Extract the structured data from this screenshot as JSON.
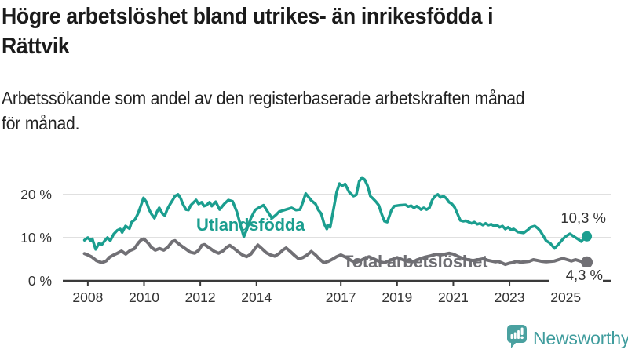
{
  "header": {
    "title_lines": [
      "Högre arbetslöshet bland utrikes- än inrikesfödda i",
      "Rättvik"
    ],
    "subtitle_lines": [
      "Arbetssökande som andel av den registerbaserade arbetskraften månad",
      "för månad."
    ]
  },
  "footer": {
    "brand": "Newsworthy",
    "brand_color": "#3f9c9d",
    "logo_icon": "bar-chart-speech-bubble-icon"
  },
  "chart_data": {
    "type": "line",
    "title": "Högre arbetslöshet bland utrikes- än inrikesfödda i Rättvik",
    "subtitle": "Arbetssökande som andel av den registerbaserade arbetskraften månad för månad.",
    "xlabel": "",
    "ylabel": "",
    "grid": "horizontal",
    "legend_position": "inline-labels",
    "xlim": [
      2007.11,
      2026.6
    ],
    "ylim": [
      0,
      25.6
    ],
    "x_ticks": [
      2008,
      2010,
      2012,
      2014,
      2017,
      2019,
      2021,
      2023,
      2025
    ],
    "y_ticks": [
      {
        "value": 0,
        "label": "0 %"
      },
      {
        "value": 10,
        "label": "10 %"
      },
      {
        "value": 20,
        "label": "20 %"
      }
    ],
    "colors": {
      "utlandsfodda": "#1b9e8f",
      "total": "#717075",
      "grid": "#dcdcdc",
      "axis": "#3a3a3a",
      "tick_text": "#333333"
    },
    "series": [
      {
        "id": "utlandsfodda",
        "name": "Utlandsfödda",
        "color": "#1b9e8f",
        "stroke_width": 3.5,
        "dot_radius": 6.5,
        "end_label": "10,3 %",
        "end_value": 10.3,
        "points": [
          [
            2007.88,
            9.4
          ],
          [
            2008.0,
            10.0
          ],
          [
            2008.1,
            9.3
          ],
          [
            2008.16,
            9.7
          ],
          [
            2008.28,
            7.3
          ],
          [
            2008.4,
            8.7
          ],
          [
            2008.5,
            8.4
          ],
          [
            2008.6,
            9.3
          ],
          [
            2008.7,
            10.0
          ],
          [
            2008.8,
            9.3
          ],
          [
            2008.92,
            10.8
          ],
          [
            2009.05,
            11.7
          ],
          [
            2009.15,
            12.0
          ],
          [
            2009.22,
            11.2
          ],
          [
            2009.34,
            12.7
          ],
          [
            2009.48,
            12.1
          ],
          [
            2009.56,
            13.6
          ],
          [
            2009.68,
            14.2
          ],
          [
            2009.78,
            15.5
          ],
          [
            2009.86,
            16.9
          ],
          [
            2009.98,
            19.2
          ],
          [
            2010.09,
            18.2
          ],
          [
            2010.18,
            16.5
          ],
          [
            2010.26,
            15.5
          ],
          [
            2010.37,
            14.5
          ],
          [
            2010.46,
            16.0
          ],
          [
            2010.54,
            16.9
          ],
          [
            2010.65,
            15.6
          ],
          [
            2010.74,
            15.1
          ],
          [
            2010.82,
            16.5
          ],
          [
            2010.93,
            17.8
          ],
          [
            2011.02,
            18.7
          ],
          [
            2011.1,
            19.6
          ],
          [
            2011.21,
            20.0
          ],
          [
            2011.3,
            19.1
          ],
          [
            2011.38,
            17.8
          ],
          [
            2011.49,
            16.5
          ],
          [
            2011.58,
            16.4
          ],
          [
            2011.66,
            17.5
          ],
          [
            2011.77,
            18.2
          ],
          [
            2011.85,
            18.7
          ],
          [
            2011.94,
            17.8
          ],
          [
            2012.05,
            18.2
          ],
          [
            2012.13,
            17.3
          ],
          [
            2012.22,
            17.5
          ],
          [
            2012.33,
            18.2
          ],
          [
            2012.41,
            17.3
          ],
          [
            2012.55,
            18.3
          ],
          [
            2012.69,
            16.5
          ],
          [
            2012.85,
            17.8
          ],
          [
            2013.0,
            18.7
          ],
          [
            2013.15,
            18.4
          ],
          [
            2013.3,
            16.0
          ],
          [
            2013.45,
            12.4
          ],
          [
            2013.55,
            10.2
          ],
          [
            2013.65,
            11.8
          ],
          [
            2013.8,
            14.5
          ],
          [
            2013.95,
            16.4
          ],
          [
            2014.1,
            17.0
          ],
          [
            2014.25,
            17.5
          ],
          [
            2014.4,
            16.0
          ],
          [
            2014.55,
            14.5
          ],
          [
            2014.7,
            15.3
          ],
          [
            2014.8,
            16.0
          ],
          [
            2014.95,
            16.3
          ],
          [
            2015.1,
            16.6
          ],
          [
            2015.25,
            16.9
          ],
          [
            2015.4,
            16.4
          ],
          [
            2015.55,
            16.5
          ],
          [
            2015.65,
            18.2
          ],
          [
            2015.75,
            20.2
          ],
          [
            2015.85,
            19.4
          ],
          [
            2015.95,
            18.6
          ],
          [
            2016.1,
            17.8
          ],
          [
            2016.2,
            16.4
          ],
          [
            2016.3,
            15.6
          ],
          [
            2016.4,
            13.3
          ],
          [
            2016.5,
            12.0
          ],
          [
            2016.56,
            12.9
          ],
          [
            2016.62,
            12.4
          ],
          [
            2016.75,
            16.9
          ],
          [
            2016.85,
            20.5
          ],
          [
            2016.95,
            22.5
          ],
          [
            2017.05,
            22.0
          ],
          [
            2017.15,
            22.4
          ],
          [
            2017.3,
            20.5
          ],
          [
            2017.45,
            19.6
          ],
          [
            2017.55,
            19.9
          ],
          [
            2017.65,
            23.0
          ],
          [
            2017.75,
            23.9
          ],
          [
            2017.85,
            23.4
          ],
          [
            2017.95,
            22.0
          ],
          [
            2018.05,
            19.6
          ],
          [
            2018.15,
            19.0
          ],
          [
            2018.25,
            18.3
          ],
          [
            2018.35,
            17.5
          ],
          [
            2018.45,
            15.5
          ],
          [
            2018.55,
            13.8
          ],
          [
            2018.65,
            13.6
          ],
          [
            2018.8,
            16.4
          ],
          [
            2018.9,
            17.3
          ],
          [
            2019.1,
            17.5
          ],
          [
            2019.3,
            17.6
          ],
          [
            2019.4,
            17.2
          ],
          [
            2019.5,
            17.4
          ],
          [
            2019.6,
            16.9
          ],
          [
            2019.7,
            17.3
          ],
          [
            2019.85,
            16.5
          ],
          [
            2019.95,
            16.9
          ],
          [
            2020.05,
            16.5
          ],
          [
            2020.15,
            16.9
          ],
          [
            2020.25,
            18.7
          ],
          [
            2020.35,
            19.6
          ],
          [
            2020.45,
            20.0
          ],
          [
            2020.55,
            19.3
          ],
          [
            2020.65,
            19.6
          ],
          [
            2020.75,
            19.1
          ],
          [
            2020.85,
            18.2
          ],
          [
            2020.95,
            17.8
          ],
          [
            2021.05,
            17.0
          ],
          [
            2021.15,
            15.5
          ],
          [
            2021.25,
            14.0
          ],
          [
            2021.35,
            13.8
          ],
          [
            2021.45,
            13.9
          ],
          [
            2021.55,
            13.6
          ],
          [
            2021.65,
            13.3
          ],
          [
            2021.75,
            13.6
          ],
          [
            2021.85,
            13.1
          ],
          [
            2021.95,
            13.3
          ],
          [
            2022.05,
            12.9
          ],
          [
            2022.15,
            13.3
          ],
          [
            2022.25,
            12.9
          ],
          [
            2022.35,
            13.1
          ],
          [
            2022.45,
            12.7
          ],
          [
            2022.55,
            12.9
          ],
          [
            2022.65,
            12.4
          ],
          [
            2022.75,
            12.7
          ],
          [
            2022.85,
            12.0
          ],
          [
            2022.95,
            12.4
          ],
          [
            2023.05,
            11.8
          ],
          [
            2023.15,
            12.0
          ],
          [
            2023.3,
            11.3
          ],
          [
            2023.5,
            11.1
          ],
          [
            2023.65,
            11.8
          ],
          [
            2023.75,
            12.4
          ],
          [
            2023.9,
            12.7
          ],
          [
            2024.0,
            12.2
          ],
          [
            2024.1,
            11.5
          ],
          [
            2024.3,
            9.3
          ],
          [
            2024.45,
            8.7
          ],
          [
            2024.6,
            7.5
          ],
          [
            2024.75,
            8.5
          ],
          [
            2024.85,
            9.3
          ],
          [
            2024.95,
            10.0
          ],
          [
            2025.05,
            10.5
          ],
          [
            2025.15,
            10.9
          ],
          [
            2025.3,
            10.2
          ],
          [
            2025.45,
            9.6
          ],
          [
            2025.55,
            9.1
          ],
          [
            2025.65,
            9.8
          ],
          [
            2025.75,
            10.3
          ]
        ]
      },
      {
        "id": "total",
        "name": "Total arbetslöshet",
        "color": "#717075",
        "stroke_width": 4,
        "dot_radius": 7.5,
        "end_label": "4,3 %",
        "end_value": 4.3,
        "points": [
          [
            2007.88,
            6.3
          ],
          [
            2008.0,
            6.0
          ],
          [
            2008.15,
            5.5
          ],
          [
            2008.3,
            4.7
          ],
          [
            2008.5,
            4.2
          ],
          [
            2008.65,
            4.6
          ],
          [
            2008.78,
            5.5
          ],
          [
            2008.92,
            6.0
          ],
          [
            2009.05,
            6.4
          ],
          [
            2009.2,
            6.9
          ],
          [
            2009.35,
            6.2
          ],
          [
            2009.5,
            7.0
          ],
          [
            2009.65,
            7.4
          ],
          [
            2009.8,
            8.8
          ],
          [
            2009.9,
            9.5
          ],
          [
            2010.0,
            9.7
          ],
          [
            2010.15,
            8.7
          ],
          [
            2010.25,
            7.8
          ],
          [
            2010.4,
            7.1
          ],
          [
            2010.55,
            7.5
          ],
          [
            2010.7,
            7.1
          ],
          [
            2010.85,
            7.8
          ],
          [
            2011.0,
            9.1
          ],
          [
            2011.1,
            9.3
          ],
          [
            2011.3,
            8.2
          ],
          [
            2011.5,
            7.3
          ],
          [
            2011.65,
            6.6
          ],
          [
            2011.8,
            6.4
          ],
          [
            2011.95,
            7.1
          ],
          [
            2012.05,
            8.2
          ],
          [
            2012.15,
            8.4
          ],
          [
            2012.35,
            7.5
          ],
          [
            2012.5,
            6.8
          ],
          [
            2012.65,
            6.4
          ],
          [
            2012.8,
            6.9
          ],
          [
            2012.95,
            7.8
          ],
          [
            2013.05,
            8.2
          ],
          [
            2013.2,
            7.5
          ],
          [
            2013.35,
            6.7
          ],
          [
            2013.5,
            6.0
          ],
          [
            2013.65,
            5.6
          ],
          [
            2013.8,
            6.2
          ],
          [
            2013.95,
            7.5
          ],
          [
            2014.05,
            8.3
          ],
          [
            2014.2,
            7.4
          ],
          [
            2014.35,
            6.5
          ],
          [
            2014.5,
            6.0
          ],
          [
            2014.65,
            5.7
          ],
          [
            2014.8,
            6.3
          ],
          [
            2014.95,
            7.2
          ],
          [
            2015.05,
            7.6
          ],
          [
            2015.2,
            6.8
          ],
          [
            2015.35,
            5.9
          ],
          [
            2015.5,
            5.1
          ],
          [
            2015.65,
            5.4
          ],
          [
            2015.8,
            6.0
          ],
          [
            2015.95,
            6.8
          ],
          [
            2016.1,
            6.0
          ],
          [
            2016.25,
            5.0
          ],
          [
            2016.4,
            4.2
          ],
          [
            2016.55,
            4.5
          ],
          [
            2016.7,
            5.0
          ],
          [
            2016.85,
            5.6
          ],
          [
            2017.0,
            6.0
          ],
          [
            2017.2,
            5.4
          ],
          [
            2017.4,
            4.6
          ],
          [
            2017.55,
            4.3
          ],
          [
            2017.7,
            4.7
          ],
          [
            2017.85,
            5.2
          ],
          [
            2018.0,
            5.6
          ],
          [
            2018.2,
            5.0
          ],
          [
            2018.4,
            4.4
          ],
          [
            2018.55,
            4.2
          ],
          [
            2018.7,
            4.6
          ],
          [
            2018.85,
            5.0
          ],
          [
            2019.0,
            5.4
          ],
          [
            2019.2,
            4.9
          ],
          [
            2019.4,
            4.5
          ],
          [
            2019.55,
            4.4
          ],
          [
            2019.7,
            4.8
          ],
          [
            2019.85,
            5.2
          ],
          [
            2020.0,
            5.5
          ],
          [
            2020.2,
            5.8
          ],
          [
            2020.4,
            6.2
          ],
          [
            2020.55,
            6.0
          ],
          [
            2020.7,
            6.2
          ],
          [
            2020.85,
            6.4
          ],
          [
            2021.0,
            6.2
          ],
          [
            2021.15,
            5.7
          ],
          [
            2021.3,
            5.3
          ],
          [
            2021.5,
            4.9
          ],
          [
            2021.7,
            4.7
          ],
          [
            2021.9,
            4.9
          ],
          [
            2022.05,
            5.1
          ],
          [
            2022.2,
            4.8
          ],
          [
            2022.35,
            4.6
          ],
          [
            2022.5,
            4.4
          ],
          [
            2022.6,
            4.5
          ],
          [
            2022.75,
            4.1
          ],
          [
            2022.85,
            3.8
          ],
          [
            2023.0,
            4.1
          ],
          [
            2023.1,
            4.2
          ],
          [
            2023.25,
            4.5
          ],
          [
            2023.4,
            4.3
          ],
          [
            2023.55,
            4.4
          ],
          [
            2023.7,
            4.5
          ],
          [
            2023.85,
            4.9
          ],
          [
            2024.0,
            4.7
          ],
          [
            2024.15,
            4.5
          ],
          [
            2024.3,
            4.4
          ],
          [
            2024.45,
            4.5
          ],
          [
            2024.6,
            4.6
          ],
          [
            2024.75,
            4.9
          ],
          [
            2024.9,
            5.2
          ],
          [
            2025.05,
            4.9
          ],
          [
            2025.2,
            4.6
          ],
          [
            2025.35,
            4.9
          ],
          [
            2025.5,
            4.6
          ],
          [
            2025.6,
            4.4
          ],
          [
            2025.75,
            4.3
          ]
        ]
      }
    ]
  }
}
